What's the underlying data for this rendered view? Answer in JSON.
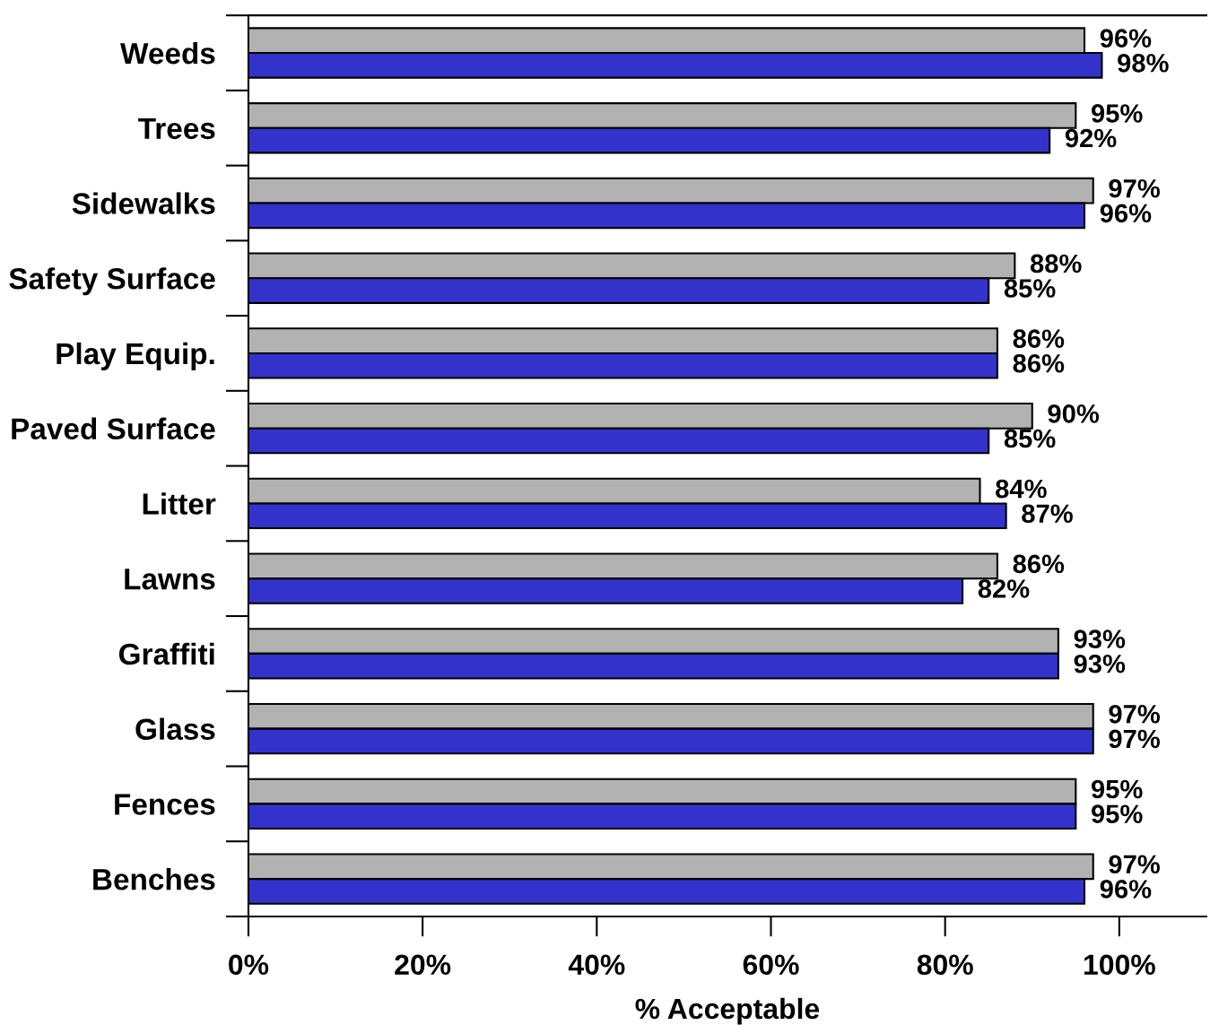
{
  "chart_data": {
    "type": "bar",
    "orientation": "horizontal",
    "xlabel": "% Acceptable",
    "categories": [
      "Weeds",
      "Trees",
      "Sidewalks",
      "Safety Surface",
      "Play Equip.",
      "Paved Surface",
      "Litter",
      "Lawns",
      "Graffiti",
      "Glass",
      "Fences",
      "Benches"
    ],
    "series": [
      {
        "color": "#b2b2b2",
        "values": [
          96,
          95,
          97,
          88,
          86,
          90,
          84,
          86,
          93,
          97,
          95,
          97
        ],
        "value_labels": [
          "96%",
          "95%",
          "97%",
          "88%",
          "86%",
          "90%",
          "84%",
          "86%",
          "93%",
          "97%",
          "95%",
          "97%"
        ]
      },
      {
        "color": "#3333cc",
        "values": [
          98,
          92,
          96,
          85,
          86,
          85,
          87,
          82,
          93,
          97,
          95,
          96
        ],
        "value_labels": [
          "98%",
          "92%",
          "96%",
          "85%",
          "86%",
          "85%",
          "87%",
          "82%",
          "93%",
          "97%",
          "95%",
          "96%"
        ]
      }
    ],
    "xlim": [
      0,
      110
    ],
    "xticks": [
      {
        "value": 0,
        "label": "0%"
      },
      {
        "value": 20,
        "label": "20%"
      },
      {
        "value": 40,
        "label": "40%"
      },
      {
        "value": 60,
        "label": "60%"
      },
      {
        "value": 80,
        "label": "80%"
      },
      {
        "value": 100,
        "label": "100%"
      }
    ]
  }
}
